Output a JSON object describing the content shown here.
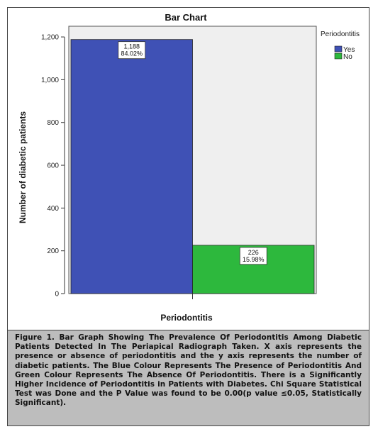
{
  "chart_data": {
    "type": "bar",
    "title": "Bar Chart",
    "xlabel": "Periodontitis",
    "ylabel": "Number of diabetic patients",
    "ylim": [
      0,
      1250
    ],
    "yticks": [
      0,
      200,
      400,
      600,
      800,
      1000,
      1200
    ],
    "ytick_labels": [
      "0",
      "200",
      "400",
      "600",
      "800",
      "1,000",
      "1,200"
    ],
    "legend": {
      "title": "Periodontitis",
      "position": "top-right",
      "entries": [
        {
          "label": "Yes",
          "color": "#3F51B5"
        },
        {
          "label": "No",
          "color": "#2DB83D"
        }
      ]
    },
    "series": [
      {
        "name": "Yes",
        "value": 1188,
        "count_label": "1,188",
        "percent_label": "84.02%",
        "color": "#3F51B5"
      },
      {
        "name": "No",
        "value": 226,
        "count_label": "226",
        "percent_label": "15.98%",
        "color": "#2DB83D"
      }
    ]
  },
  "caption": "Figure 1. Bar Graph Showing The Prevalence Of Periodontitis Among Diabetic Patients Detected In The Periapical Radiograph Taken. X axis represents the presence or absence of periodontitis and the y axis represents the number of diabetic patients. The Blue Colour Represents The Presence of Periodontitis And Green Colour Represents The Absence Of Periodontitis. There is a Significantly Higher Incidence of Periodontitis in Patients with Diabetes. Chi Square Statistical Test was Done and the P Value was found to be 0.00(p value ≤0.05, Statistically Significant)."
}
